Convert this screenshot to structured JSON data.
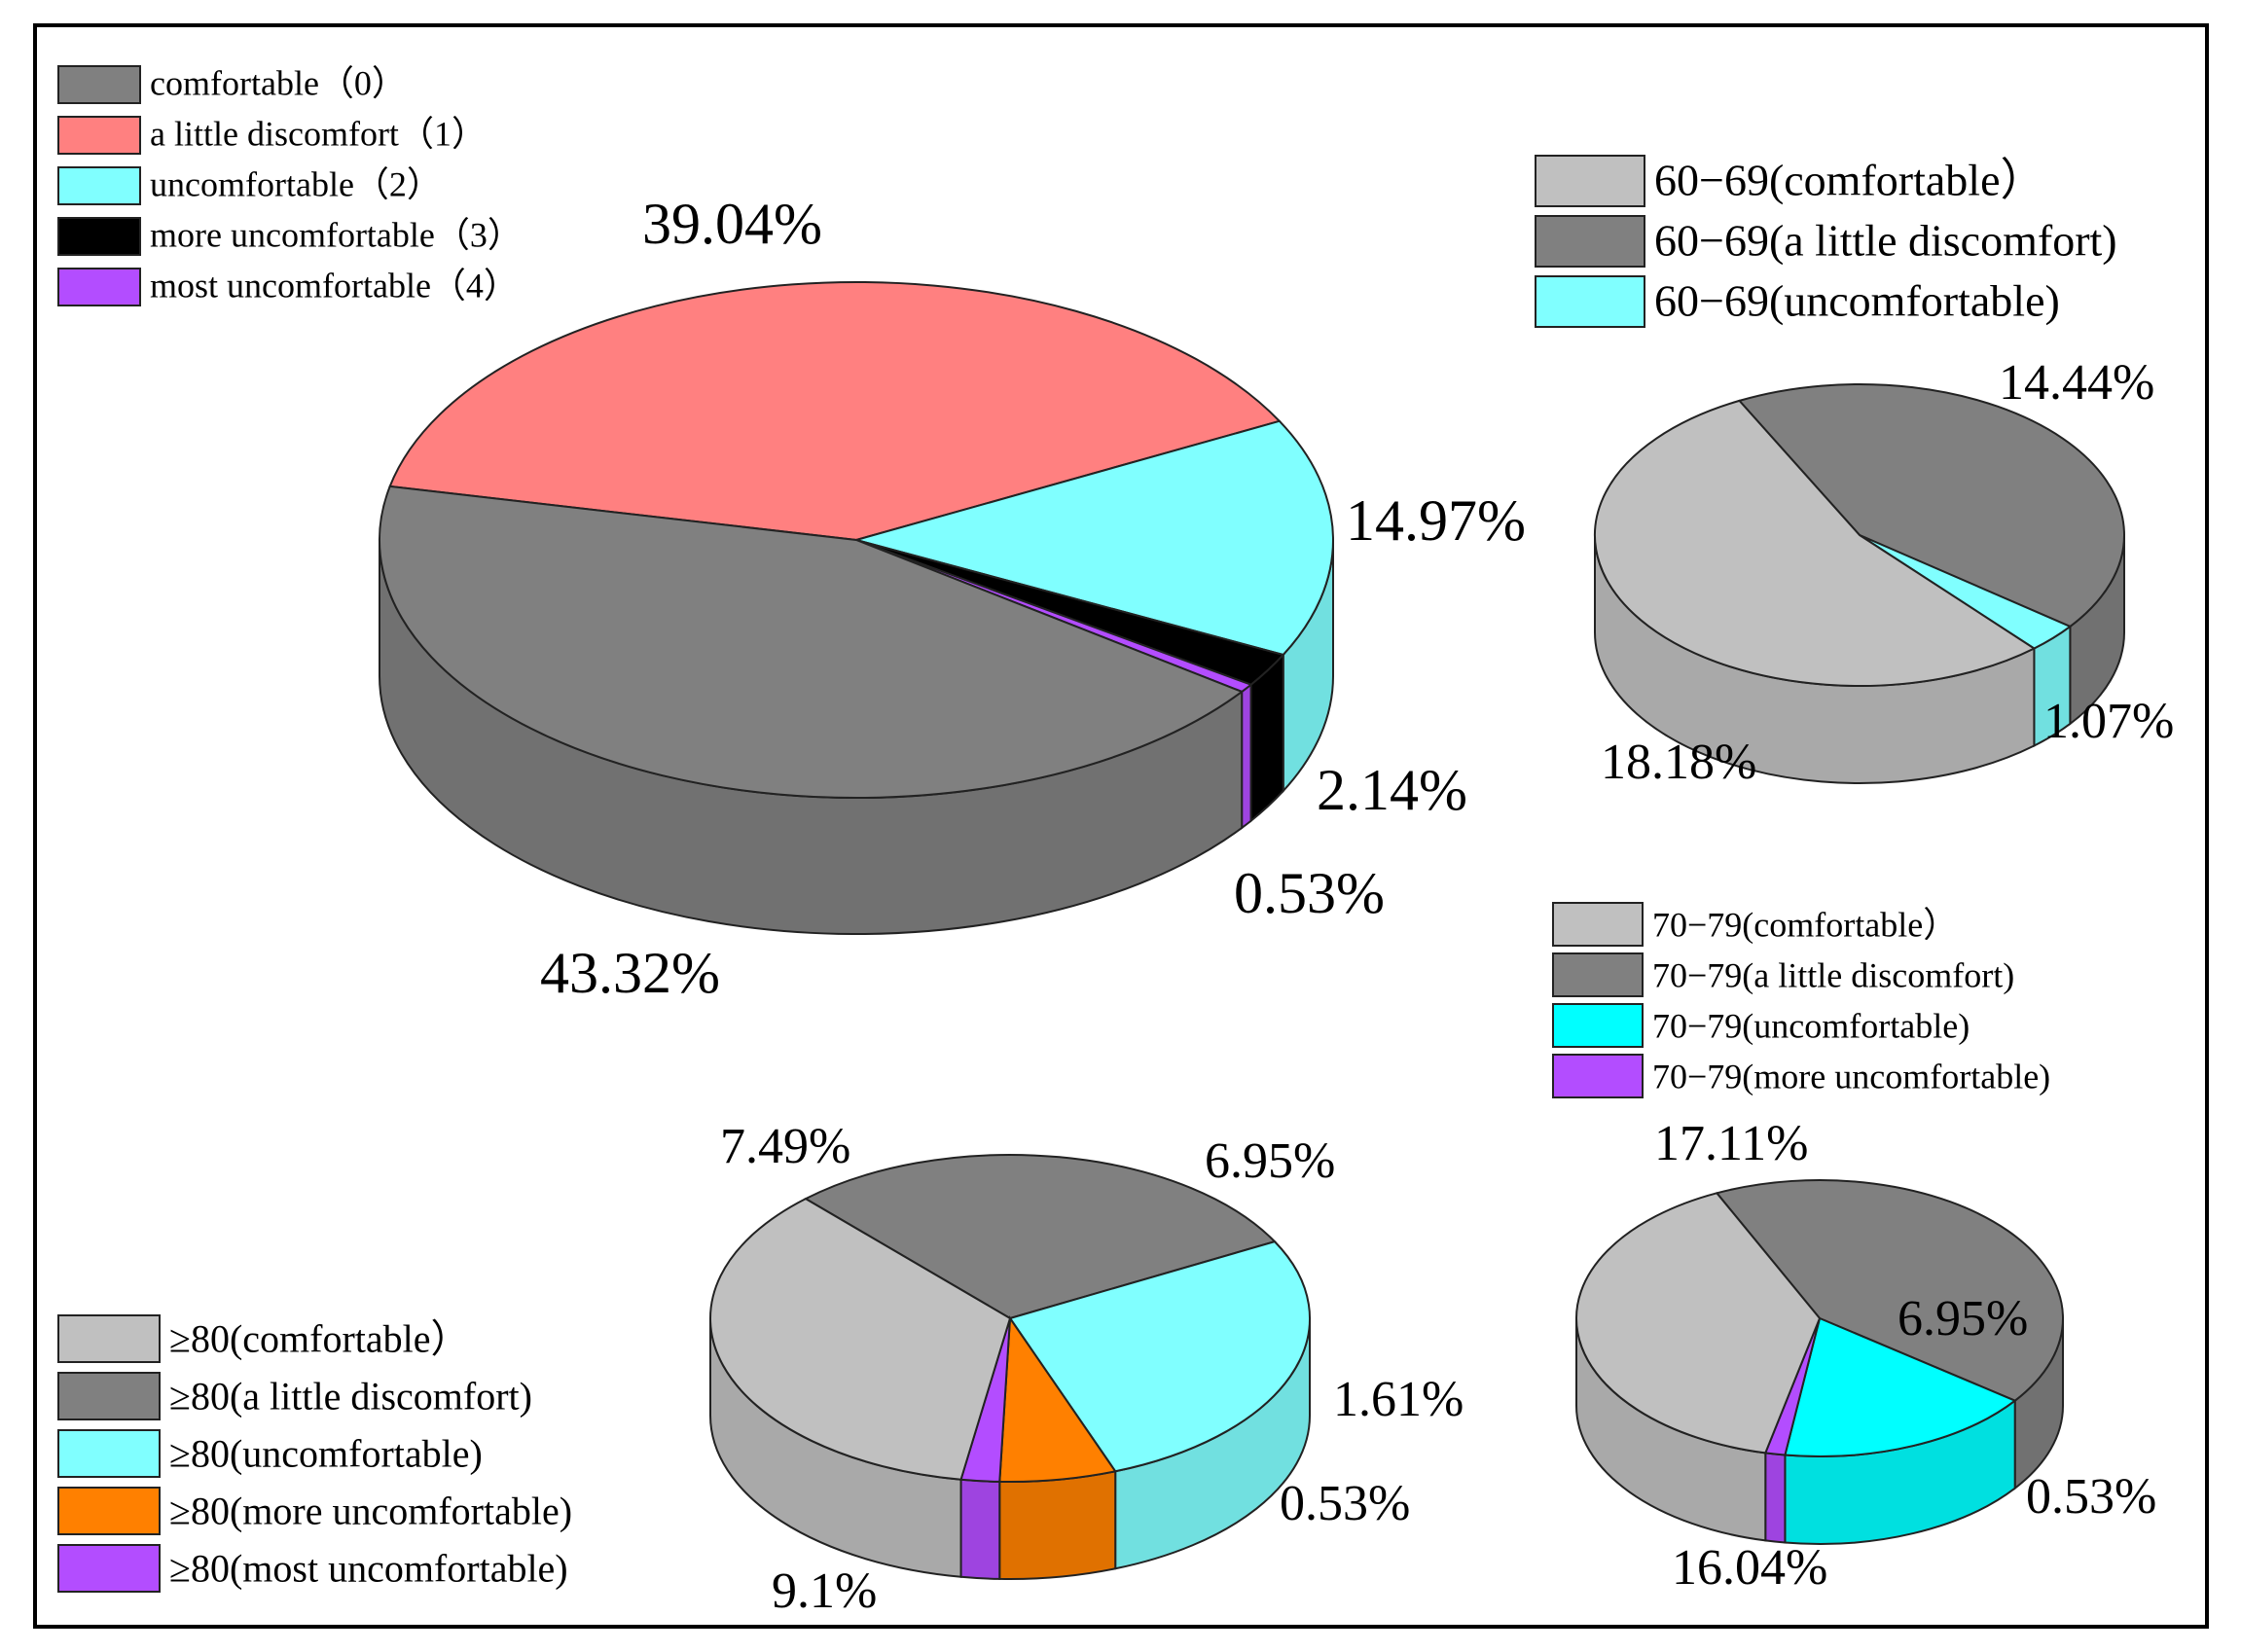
{
  "chart_data": [
    {
      "id": "overall",
      "type": "pie",
      "style": "3d",
      "legend": {
        "placement": "top-left",
        "items": [
          {
            "label": "comfortable（0）",
            "color": "#808080"
          },
          {
            "label": "a little discomfort（1）",
            "color": "#ff8080"
          },
          {
            "label": "uncomfortable（2）",
            "color": "#80ffff"
          },
          {
            "label": "more uncomfortable（3）",
            "color": "#000000"
          },
          {
            "label": "most uncomfortable（4）",
            "color": "#b34dff"
          }
        ]
      },
      "slices": [
        {
          "label": "a little discomfort（1）",
          "value": 39.04,
          "text": "39.04%",
          "color": "#ff8080"
        },
        {
          "label": "uncomfortable（2）",
          "value": 14.97,
          "text": "14.97%",
          "color": "#80ffff"
        },
        {
          "label": "more uncomfortable（3）",
          "value": 2.14,
          "text": "2.14%",
          "color": "#000000"
        },
        {
          "label": "most uncomfortable（4）",
          "value": 0.53,
          "text": "0.53%",
          "color": "#b34dff"
        },
        {
          "label": "comfortable（0）",
          "value": 43.32,
          "text": "43.32%",
          "color": "#808080"
        }
      ]
    },
    {
      "id": "age-60-69",
      "type": "pie",
      "style": "3d",
      "legend": {
        "placement": "top-right",
        "items": [
          {
            "label": "60−69(comfortable）",
            "color": "#c0c0c0"
          },
          {
            "label": "60−69(a little discomfort)",
            "color": "#808080"
          },
          {
            "label": "60−69(uncomfortable)",
            "color": "#80ffff"
          }
        ]
      },
      "slices": [
        {
          "label": "60−69(a little discomfort)",
          "value": 14.44,
          "text": "14.44%",
          "color": "#808080"
        },
        {
          "label": "60−69(uncomfortable)",
          "value": 1.07,
          "text": "1.07%",
          "color": "#80ffff"
        },
        {
          "label": "60−69(comfortable）",
          "value": 18.18,
          "text": "18.18%",
          "color": "#c0c0c0"
        }
      ]
    },
    {
      "id": "age-70-79",
      "type": "pie",
      "style": "3d",
      "legend": {
        "placement": "middle-right",
        "items": [
          {
            "label": "70−79(comfortable）",
            "color": "#c0c0c0"
          },
          {
            "label": "70−79(a little discomfort)",
            "color": "#808080"
          },
          {
            "label": "70−79(uncomfortable)",
            "color": "#00ffff"
          },
          {
            "label": "70−79(more uncomfortable)",
            "color": "#b34dff"
          }
        ]
      },
      "slices": [
        {
          "label": "70−79(a little discomfort)",
          "value": 17.11,
          "text": "17.11%",
          "color": "#808080"
        },
        {
          "label": "70−79(uncomfortable)",
          "value": 6.95,
          "text": "6.95%",
          "color": "#00ffff"
        },
        {
          "label": "70−79(more uncomfortable)",
          "value": 0.53,
          "text": "0.53%",
          "color": "#b34dff"
        },
        {
          "label": "70−79(comfortable）",
          "value": 16.04,
          "text": "16.04%",
          "color": "#c0c0c0"
        }
      ]
    },
    {
      "id": "age-80-plus",
      "type": "pie",
      "style": "3d",
      "legend": {
        "placement": "bottom-left",
        "items": [
          {
            "label": "≥80(comfortable）",
            "color": "#c0c0c0"
          },
          {
            "label": "≥80(a little discomfort)",
            "color": "#808080"
          },
          {
            "label": "≥80(uncomfortable)",
            "color": "#80ffff"
          },
          {
            "label": "≥80(more uncomfortable)",
            "color": "#ff8000"
          },
          {
            "label": "≥80(most uncomfortable)",
            "color": "#b34dff"
          }
        ]
      },
      "slices": [
        {
          "label": "≥80(a little discomfort)",
          "value": 7.49,
          "text": "7.49%",
          "color": "#808080"
        },
        {
          "label": "≥80(uncomfortable)",
          "value": 6.95,
          "text": "6.95%",
          "color": "#80ffff"
        },
        {
          "label": "≥80(more uncomfortable)",
          "value": 1.61,
          "text": "1.61%",
          "color": "#ff8000"
        },
        {
          "label": "≥80(most uncomfortable)",
          "value": 0.53,
          "text": "0.53%",
          "color": "#b34dff"
        },
        {
          "label": "≥80(comfortable）",
          "value": 9.1,
          "text": "9.1%",
          "color": "#c0c0c0"
        }
      ]
    }
  ]
}
